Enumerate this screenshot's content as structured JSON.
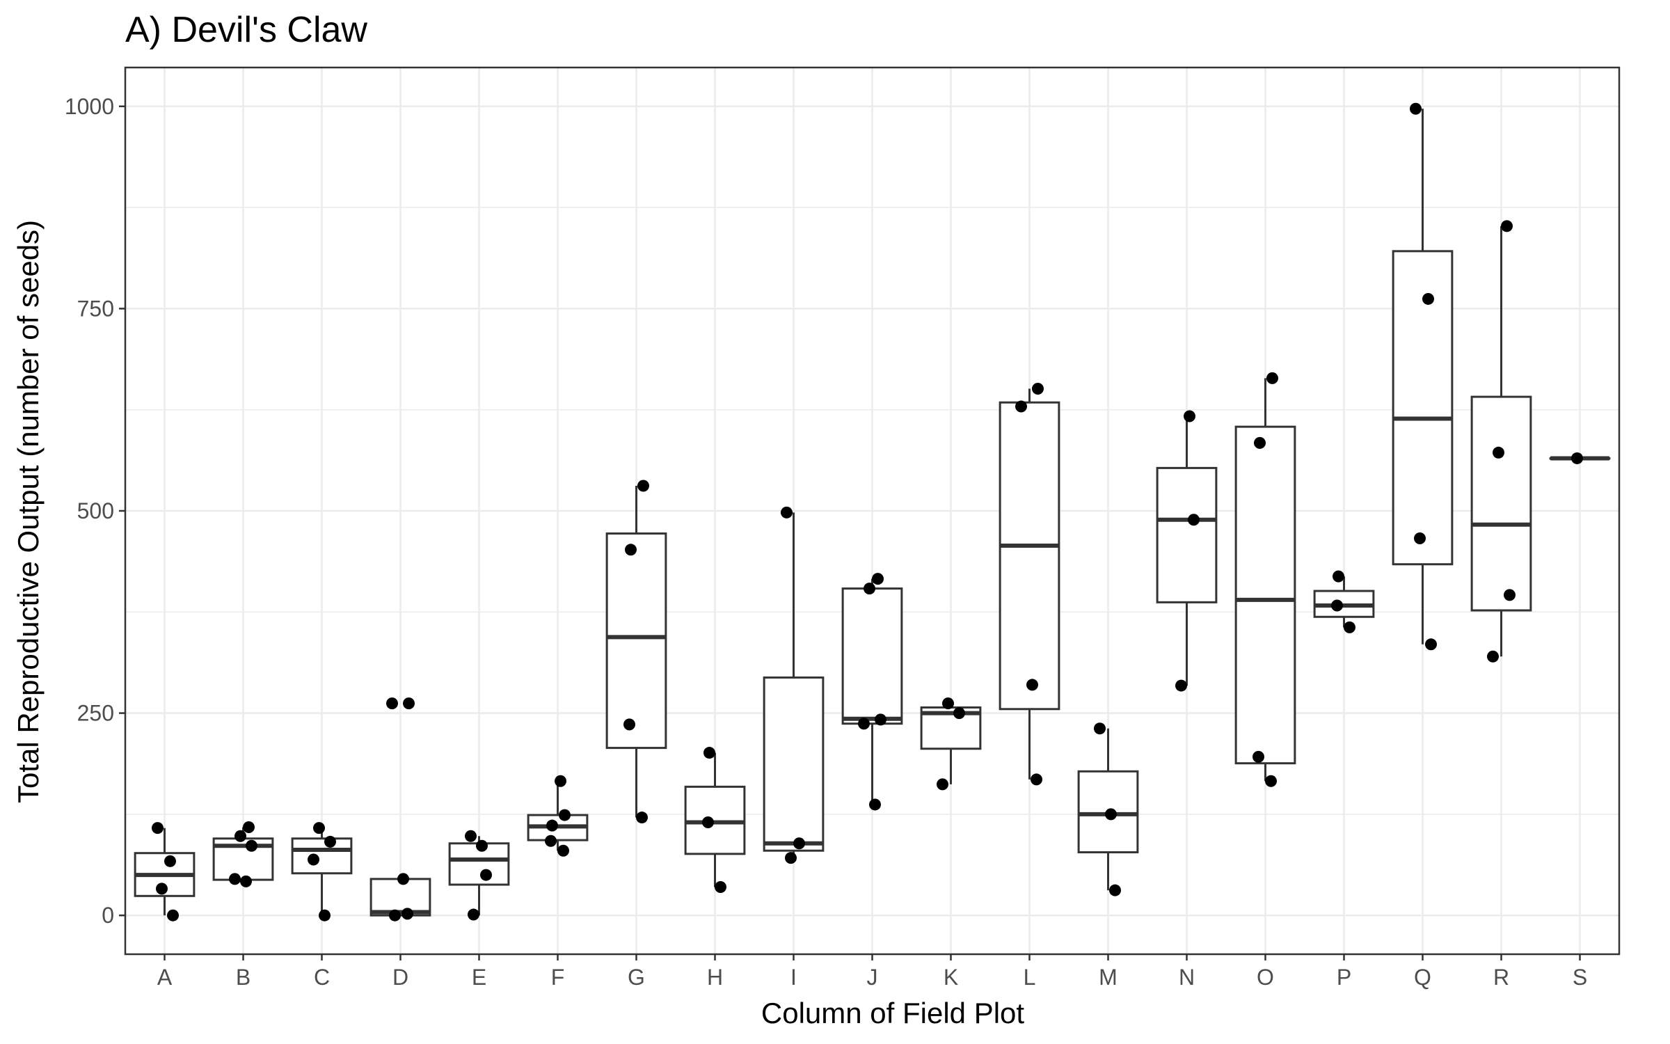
{
  "chart_data": {
    "type": "boxplot",
    "title": "A) Devil's Claw",
    "xlabel": "Column of Field Plot",
    "ylabel": "Total Reproductive Output (number of seeds)",
    "ylim": [
      -48,
      1048
    ],
    "yticks": [
      0,
      250,
      500,
      750,
      1000
    ],
    "grid": true,
    "categories": [
      "A",
      "B",
      "C",
      "D",
      "E",
      "F",
      "G",
      "H",
      "I",
      "J",
      "K",
      "L",
      "M",
      "N",
      "O",
      "P",
      "Q",
      "R",
      "S"
    ],
    "boxes": [
      {
        "category": "A",
        "q1": 24,
        "median": 50,
        "q3": 77,
        "whisker_low": 0,
        "whisker_high": 108
      },
      {
        "category": "B",
        "q1": 44,
        "median": 86,
        "q3": 95,
        "whisker_low": 42,
        "whisker_high": 109
      },
      {
        "category": "C",
        "q1": 52,
        "median": 81,
        "q3": 95,
        "whisker_low": 0,
        "whisker_high": 108
      },
      {
        "category": "D",
        "q1": 0,
        "median": 4,
        "q3": 45,
        "whisker_low": 0,
        "whisker_high": 45
      },
      {
        "category": "E",
        "q1": 38,
        "median": 69,
        "q3": 89,
        "whisker_low": 0,
        "whisker_high": 98
      },
      {
        "category": "F",
        "q1": 93,
        "median": 110,
        "q3": 124,
        "whisker_low": 80,
        "whisker_high": 166
      },
      {
        "category": "G",
        "q1": 207,
        "median": 344,
        "q3": 472,
        "whisker_low": 121,
        "whisker_high": 531
      },
      {
        "category": "H",
        "q1": 76,
        "median": 115,
        "q3": 159,
        "whisker_low": 35,
        "whisker_high": 201
      },
      {
        "category": "I",
        "q1": 80,
        "median": 89,
        "q3": 294,
        "whisker_low": 71,
        "whisker_high": 498
      },
      {
        "category": "J",
        "q1": 237,
        "median": 243,
        "q3": 404,
        "whisker_low": 137,
        "whisker_high": 416
      },
      {
        "category": "K",
        "q1": 206,
        "median": 250,
        "q3": 257,
        "whisker_low": 162,
        "whisker_high": 262
      },
      {
        "category": "L",
        "q1": 255,
        "median": 457,
        "q3": 634,
        "whisker_low": 168,
        "whisker_high": 651
      },
      {
        "category": "M",
        "q1": 78,
        "median": 125,
        "q3": 178,
        "whisker_low": 31,
        "whisker_high": 231
      },
      {
        "category": "N",
        "q1": 387,
        "median": 489,
        "q3": 553,
        "whisker_low": 284,
        "whisker_high": 617
      },
      {
        "category": "O",
        "q1": 188,
        "median": 390,
        "q3": 604,
        "whisker_low": 166,
        "whisker_high": 664
      },
      {
        "category": "P",
        "q1": 369,
        "median": 383,
        "q3": 401,
        "whisker_low": 356,
        "whisker_high": 419
      },
      {
        "category": "Q",
        "q1": 434,
        "median": 614,
        "q3": 821,
        "whisker_low": 335,
        "whisker_high": 997
      },
      {
        "category": "R",
        "q1": 377,
        "median": 483,
        "q3": 641,
        "whisker_low": 320,
        "whisker_high": 852
      },
      {
        "category": "S",
        "q1": 565,
        "median": 565,
        "q3": 565,
        "whisker_low": 565,
        "whisker_high": 565
      }
    ],
    "points": [
      {
        "category": "A",
        "values": [
          108,
          67,
          33,
          0
        ]
      },
      {
        "category": "B",
        "values": [
          109,
          98,
          86,
          45,
          42
        ]
      },
      {
        "category": "C",
        "values": [
          108,
          91,
          69,
          0
        ]
      },
      {
        "category": "D",
        "values": [
          262,
          262,
          45,
          2,
          0
        ]
      },
      {
        "category": "E",
        "values": [
          98,
          86,
          50,
          1
        ]
      },
      {
        "category": "F",
        "values": [
          166,
          124,
          111,
          92,
          80
        ]
      },
      {
        "category": "G",
        "values": [
          531,
          452,
          236,
          121
        ]
      },
      {
        "category": "H",
        "values": [
          201,
          115,
          35
        ]
      },
      {
        "category": "I",
        "values": [
          498,
          89,
          71
        ]
      },
      {
        "category": "J",
        "values": [
          416,
          404,
          242,
          237,
          137
        ]
      },
      {
        "category": "K",
        "values": [
          262,
          250,
          162
        ]
      },
      {
        "category": "L",
        "values": [
          651,
          629,
          285,
          168
        ]
      },
      {
        "category": "M",
        "values": [
          231,
          125,
          31
        ]
      },
      {
        "category": "N",
        "values": [
          617,
          489,
          284
        ]
      },
      {
        "category": "O",
        "values": [
          664,
          584,
          196,
          166
        ]
      },
      {
        "category": "P",
        "values": [
          419,
          383,
          356
        ]
      },
      {
        "category": "Q",
        "values": [
          997,
          762,
          466,
          335
        ]
      },
      {
        "category": "R",
        "values": [
          852,
          572,
          396,
          320
        ]
      },
      {
        "category": "S",
        "values": [
          565
        ]
      }
    ],
    "colors": {
      "box_stroke": "#333333",
      "point": "#000000",
      "grid": "#ebebeb",
      "panel_border": "#333333",
      "tick_label": "#4d4d4d"
    }
  }
}
